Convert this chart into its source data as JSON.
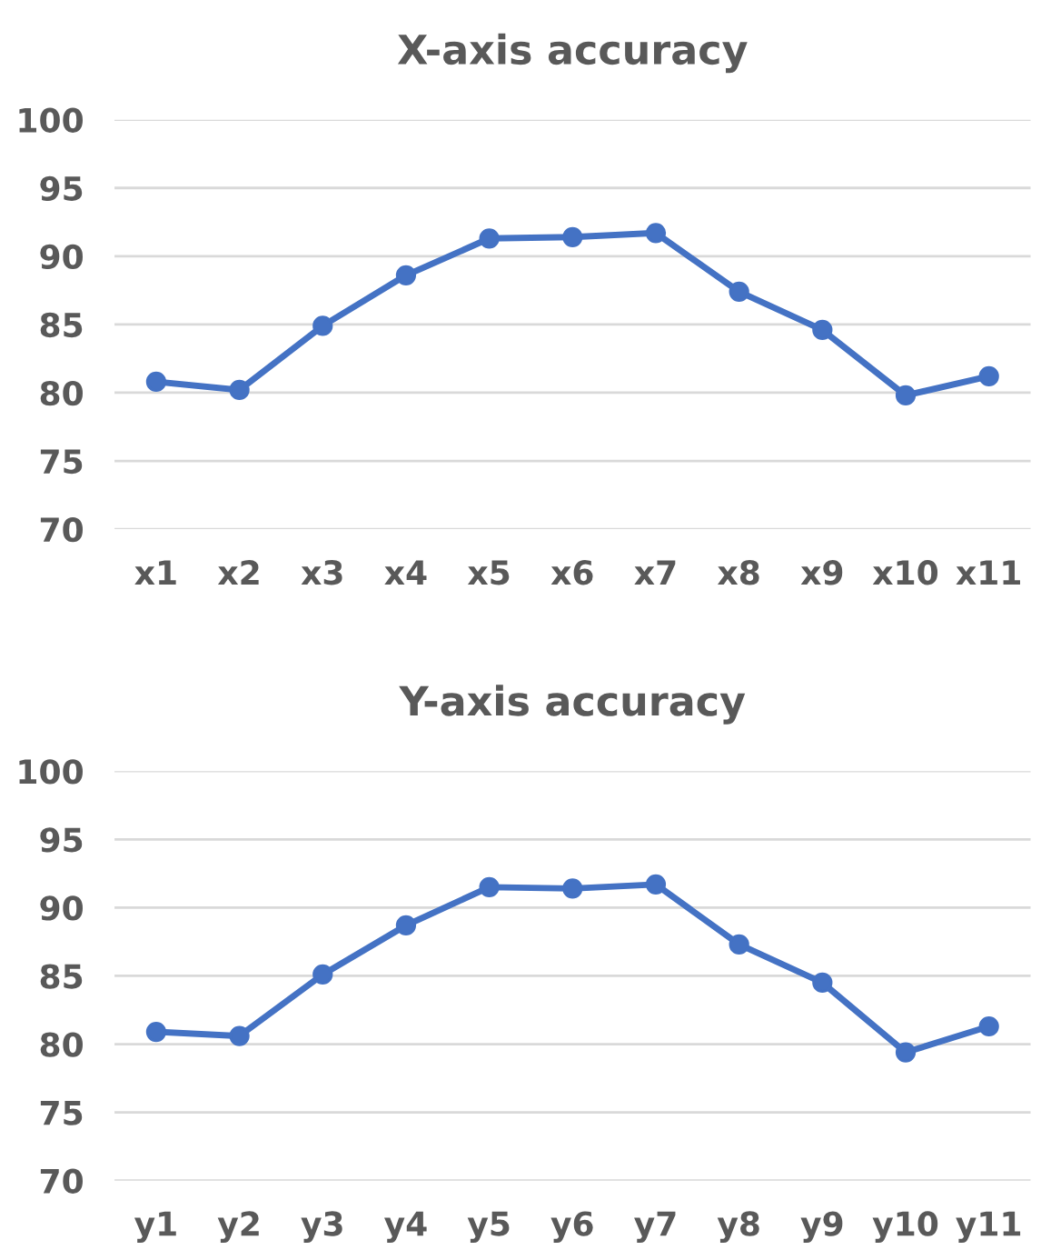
{
  "chart_data": [
    {
      "type": "line",
      "title": "X-axis accuracy",
      "categories": [
        "x1",
        "x2",
        "x3",
        "x4",
        "x5",
        "x6",
        "x7",
        "x8",
        "x9",
        "x10",
        "x11"
      ],
      "series": [
        {
          "color": "#4472c4",
          "values": [
            80.8,
            80.2,
            84.9,
            88.6,
            91.3,
            91.4,
            91.7,
            87.4,
            84.6,
            79.8,
            81.2
          ]
        }
      ],
      "ylim": [
        70,
        100
      ],
      "yticks": [
        70,
        75,
        80,
        85,
        90,
        95,
        100
      ],
      "grid": "y",
      "marker": "circle",
      "line_style": "solid",
      "legend": false
    },
    {
      "type": "line",
      "title": "Y-axis accuracy",
      "categories": [
        "y1",
        "y2",
        "y3",
        "y4",
        "y5",
        "y6",
        "y7",
        "y8",
        "y9",
        "y10",
        "y11"
      ],
      "series": [
        {
          "color": "#4472c4",
          "values": [
            80.9,
            80.6,
            85.1,
            88.7,
            91.5,
            91.4,
            91.7,
            87.3,
            84.5,
            79.4,
            81.3
          ]
        }
      ],
      "ylim": [
        70,
        100
      ],
      "yticks": [
        70,
        75,
        80,
        85,
        90,
        95,
        100
      ],
      "grid": "y",
      "marker": "circle",
      "line_style": "solid",
      "legend": false
    }
  ]
}
